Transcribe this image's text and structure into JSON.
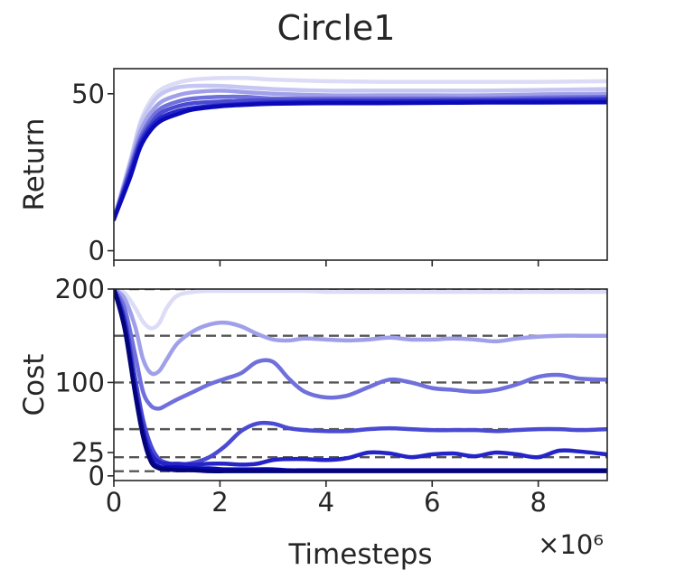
{
  "chart_data": {
    "title": "Circle1",
    "x_scale_label": "×10⁶",
    "legend": "none",
    "grid": false,
    "panels": [
      {
        "type": "line",
        "ylabel": "Return",
        "xlabel": "",
        "xlim": [
          0,
          9.3
        ],
        "ylim": [
          -3,
          58
        ],
        "yticks": [
          0,
          50
        ],
        "xticks": [
          0,
          2,
          4,
          6,
          8
        ],
        "show_xticklabels": false,
        "x": [
          0,
          0.3,
          0.5,
          0.7,
          0.9,
          1.2,
          1.5,
          2,
          2.5,
          3,
          4,
          5,
          6,
          7,
          8,
          9.3
        ],
        "series": [
          {
            "color": "#dcdcf6",
            "values": [
              10,
              28,
              41,
              48,
              51.5,
              53.5,
              54.5,
              55,
              55,
              54.5,
              54,
              53.8,
              53.8,
              53.8,
              53.8,
              54
            ]
          },
          {
            "color": "#c6c6f2",
            "values": [
              10,
              28,
              40,
              46.5,
              50,
              52,
              52.5,
              52.5,
              52,
              51.5,
              51,
              51,
              51,
              51,
              51.2,
              51.5
            ]
          },
          {
            "color": "#a0a0ea",
            "values": [
              10,
              27,
              38,
              44,
              47.5,
              49.5,
              50.5,
              51,
              50.5,
              50,
              49.5,
              49.5,
              49.5,
              49.5,
              49.8,
              50
            ]
          },
          {
            "color": "#7070dc",
            "values": [
              10,
              26,
              36,
              42,
              45.5,
              47.5,
              48.5,
              49,
              49,
              48.5,
              48.5,
              48.5,
              48.5,
              48.5,
              48.8,
              49
            ]
          },
          {
            "color": "#4a4ad2",
            "values": [
              10,
              25,
              35,
              40.5,
              44,
              46,
              47,
              47.5,
              47.8,
              48,
              48,
              48,
              48,
              48,
              48.2,
              48.5
            ]
          },
          {
            "color": "#2424c8",
            "values": [
              10,
              24,
              34,
              39.5,
              42.5,
              44.5,
              45.5,
              46.3,
              46.8,
              47.2,
              47.5,
              47.5,
              47.6,
              47.7,
              47.8,
              48
            ]
          },
          {
            "color": "#0a0ab8",
            "values": [
              10,
              23,
              33,
              38.5,
              41.5,
              43.5,
              45,
              46,
              46.5,
              46.8,
              47,
              47,
              47.1,
              47.2,
              47.2,
              47.3
            ]
          }
        ]
      },
      {
        "type": "line",
        "ylabel": "Cost",
        "xlabel": "Timesteps",
        "xlim": [
          0,
          9.3
        ],
        "ylim": [
          -5,
          200
        ],
        "yticks": [
          0,
          25,
          100,
          200
        ],
        "xticks": [
          0,
          2,
          4,
          6,
          8
        ],
        "show_xticklabels": true,
        "reference_lines": [
          200,
          150,
          100,
          50,
          20,
          5
        ],
        "x": [
          0,
          0.2,
          0.4,
          0.55,
          0.7,
          0.85,
          1.0,
          1.2,
          1.5,
          1.8,
          2.1,
          2.4,
          2.7,
          3.0,
          3.3,
          3.6,
          4.0,
          4.4,
          4.8,
          5.2,
          5.6,
          6.0,
          6.4,
          6.8,
          7.2,
          7.6,
          8.0,
          8.4,
          8.8,
          9.3
        ],
        "series": [
          {
            "color": "#dcdcf6",
            "values": [
              200,
              196,
              180,
              165,
              158,
              163,
              180,
              193,
              197,
              198,
              198,
              198,
              198,
              198,
              198,
              198,
              197,
              197,
              197,
              197,
              197,
              197,
              197,
              197,
              197,
              197,
              197,
              197,
              197,
              197
            ]
          },
          {
            "color": "#a0a0ea",
            "values": [
              200,
              190,
              160,
              125,
              110,
              112,
              125,
              142,
              155,
              162,
              164,
              160,
              152,
              146,
              145,
              147,
              146,
              145,
              146,
              148,
              146,
              146,
              147,
              146,
              144,
              147,
              149,
              150,
              150,
              150
            ]
          },
          {
            "color": "#7070dc",
            "values": [
              200,
              180,
              130,
              90,
              75,
              72,
              76,
              82,
              90,
              98,
              104,
              110,
              122,
              122,
              104,
              90,
              84,
              86,
              95,
              103,
              100,
              94,
              92,
              90,
              92,
              98,
              106,
              108,
              104,
              103
            ]
          },
          {
            "color": "#4a4ad2",
            "values": [
              200,
              170,
              105,
              60,
              32,
              18,
              14,
              12,
              14,
              20,
              32,
              48,
              56,
              56,
              51,
              49,
              48,
              48,
              50,
              51,
              50,
              49,
              49,
              49,
              48,
              49,
              50,
              50,
              49,
              50
            ]
          },
          {
            "color": "#2424c8",
            "values": [
              200,
              165,
              95,
              50,
              24,
              15,
              13,
              13,
              12,
              13,
              13,
              12,
              13,
              17,
              18,
              18,
              17,
              19,
              25,
              24,
              20,
              23,
              24,
              21,
              25,
              23,
              20,
              27,
              26,
              23
            ]
          },
          {
            "color": "#0a0ab8",
            "values": [
              200,
              160,
              90,
              45,
              18,
              10,
              9,
              9,
              8,
              8,
              7,
              7,
              7,
              7,
              6,
              6,
              6,
              6,
              6,
              6,
              6,
              6,
              6,
              6,
              6,
              6,
              6,
              6,
              6,
              6
            ]
          },
          {
            "color": "#040478",
            "values": [
              200,
              158,
              88,
              42,
              15,
              8,
              7,
              6,
              6,
              5,
              5,
              5,
              5,
              5,
              5,
              5,
              5,
              5,
              5,
              5,
              5,
              5,
              5,
              5,
              5,
              5,
              5,
              5,
              5,
              5
            ]
          }
        ]
      }
    ]
  }
}
